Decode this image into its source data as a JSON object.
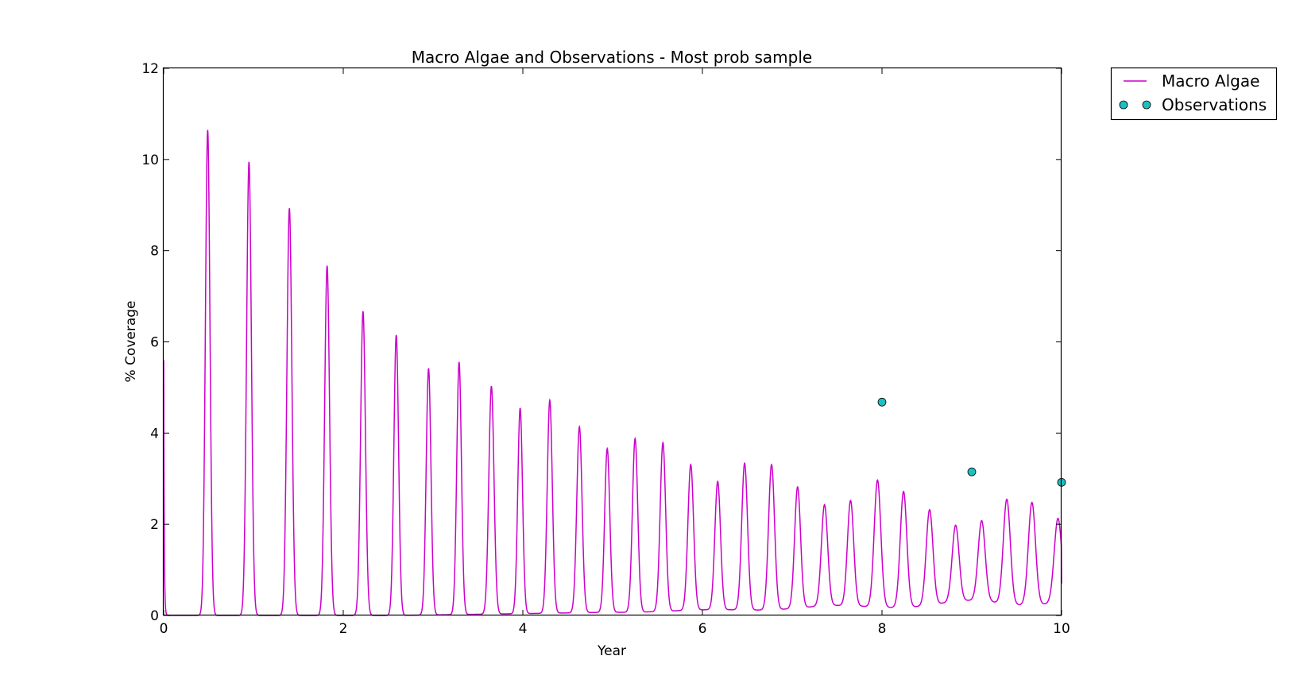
{
  "chart_data": {
    "type": "line",
    "title": "Macro Algae and Observations - Most prob sample",
    "xlabel": "Year",
    "ylabel": "% Coverage",
    "xlim": [
      0,
      10
    ],
    "ylim": [
      0,
      12
    ],
    "xticks": [
      "0",
      "2",
      "4",
      "6",
      "8",
      "10"
    ],
    "xtick_values": [
      0,
      2,
      4,
      6,
      8,
      10
    ],
    "yticks": [
      "0",
      "2",
      "4",
      "6",
      "8",
      "10",
      "12"
    ],
    "ytick_values": [
      0,
      2,
      4,
      6,
      8,
      10,
      12
    ],
    "grid": false,
    "legend_placement": "outside-top-right",
    "series": [
      {
        "name": "Macro Algae",
        "kind": "line",
        "color": "#cc00cc",
        "start_value": 5.6,
        "peaks": [
          {
            "x": 0.49,
            "peak": 10.65,
            "base": 0.0
          },
          {
            "x": 0.95,
            "peak": 9.95,
            "base": 0.0
          },
          {
            "x": 1.4,
            "peak": 8.93,
            "base": 0.0
          },
          {
            "x": 1.82,
            "peak": 7.67,
            "base": 0.0
          },
          {
            "x": 2.22,
            "peak": 6.67,
            "base": 0.0
          },
          {
            "x": 2.59,
            "peak": 6.15,
            "base": 0.0
          },
          {
            "x": 2.95,
            "peak": 5.42,
            "base": 0.01
          },
          {
            "x": 3.29,
            "peak": 5.56,
            "base": 0.02
          },
          {
            "x": 3.65,
            "peak": 5.03,
            "base": 0.03
          },
          {
            "x": 3.97,
            "peak": 4.55,
            "base": 0.04
          },
          {
            "x": 4.3,
            "peak": 4.72,
            "base": 0.05
          },
          {
            "x": 4.63,
            "peak": 4.14,
            "base": 0.06
          },
          {
            "x": 4.94,
            "peak": 3.66,
            "base": 0.07
          },
          {
            "x": 5.25,
            "peak": 3.88,
            "base": 0.07
          },
          {
            "x": 5.56,
            "peak": 3.79,
            "base": 0.09
          },
          {
            "x": 5.87,
            "peak": 3.31,
            "base": 0.12
          },
          {
            "x": 6.17,
            "peak": 2.94,
            "base": 0.13
          },
          {
            "x": 6.47,
            "peak": 3.34,
            "base": 0.12
          },
          {
            "x": 6.77,
            "peak": 3.31,
            "base": 0.12
          },
          {
            "x": 7.06,
            "peak": 2.82,
            "base": 0.16
          },
          {
            "x": 7.36,
            "peak": 2.43,
            "base": 0.22
          },
          {
            "x": 7.65,
            "peak": 2.52,
            "base": 0.22
          },
          {
            "x": 7.95,
            "peak": 2.97,
            "base": 0.18
          },
          {
            "x": 8.24,
            "peak": 2.72,
            "base": 0.17
          },
          {
            "x": 8.53,
            "peak": 2.32,
            "base": 0.22
          },
          {
            "x": 8.82,
            "peak": 1.98,
            "base": 0.32
          },
          {
            "x": 9.11,
            "peak": 2.08,
            "base": 0.34
          },
          {
            "x": 9.39,
            "peak": 2.55,
            "base": 0.24
          },
          {
            "x": 9.67,
            "peak": 2.48,
            "base": 0.22
          },
          {
            "x": 9.96,
            "peak": 2.13,
            "base": 0.28
          }
        ],
        "end_value": 0.7
      },
      {
        "name": "Observations",
        "kind": "scatter",
        "color": "#1fbfbf",
        "points": [
          {
            "x": 8,
            "y": 4.68
          },
          {
            "x": 9,
            "y": 3.15
          },
          {
            "x": 10,
            "y": 2.92
          }
        ]
      }
    ]
  }
}
